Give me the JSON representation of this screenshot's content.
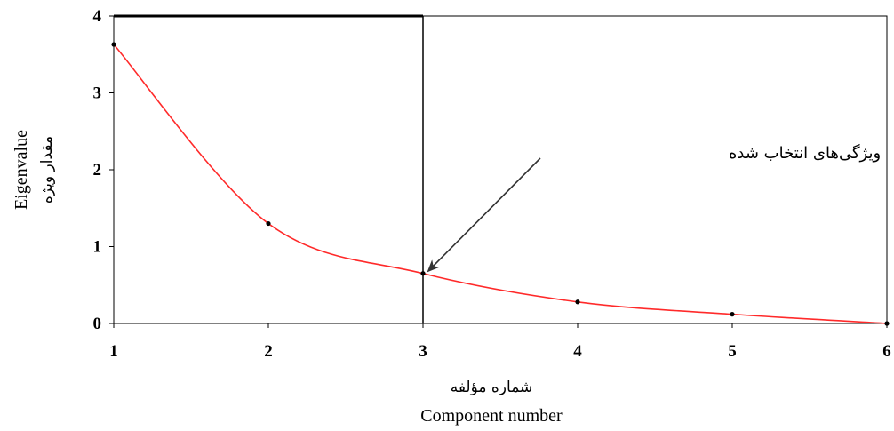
{
  "chart_data": {
    "type": "line",
    "xlabel": "Component number",
    "xlabel_fa": "شماره مؤلفه",
    "ylabel": "Eigenvalue",
    "ylabel_fa": "مقدار ویژه",
    "xlim": [
      1,
      6
    ],
    "ylim": [
      0,
      4
    ],
    "x_ticks": [
      "1",
      "2",
      "3",
      "4",
      "5",
      "6"
    ],
    "y_ticks": [
      "0",
      "1",
      "2",
      "3",
      "4"
    ],
    "grid": false,
    "series": [
      {
        "color": "#ff2a2a",
        "x": [
          1,
          2,
          3,
          4,
          5,
          6
        ],
        "y": [
          3.63,
          1.3,
          0.65,
          0.28,
          0.12,
          0.0
        ]
      }
    ],
    "reference_lines": [
      {
        "orientation": "vertical",
        "x": 3
      },
      {
        "orientation": "horizontal",
        "y": 4,
        "x_range": [
          1,
          3
        ]
      }
    ],
    "annotation": {
      "text": "ویژگی‌های انتخاب شده",
      "points_to": {
        "x": 3,
        "y": 0.65
      }
    }
  },
  "colors": {
    "line": "#ff2a2a",
    "axis": "#000000",
    "marker": "#000000"
  }
}
